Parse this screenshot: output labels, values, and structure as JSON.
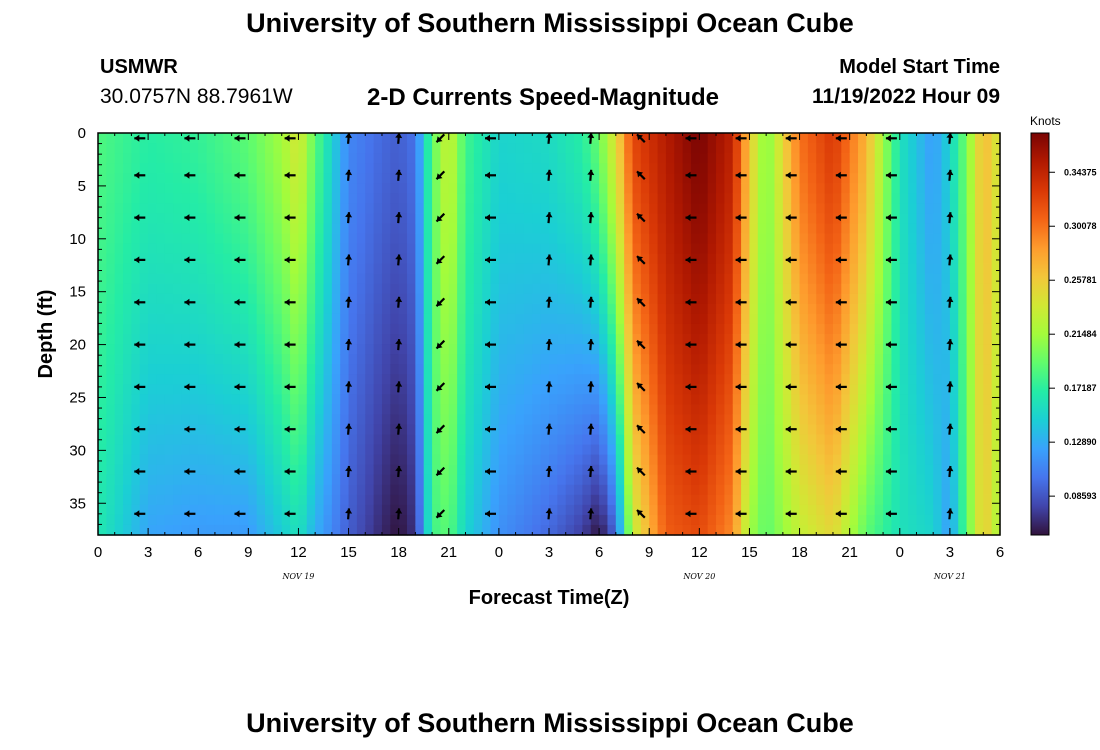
{
  "header": {
    "title_top": "University of Southern Mississippi Ocean Cube",
    "title_bottom": "University of Southern Mississippi Ocean Cube",
    "station": "USMWR",
    "coordinates": "30.0757N  88.7961W",
    "plot_title": "2-D Currents Speed-Magnitude",
    "model_start_label": "Model Start Time",
    "model_start_value": "11/19/2022 Hour 09"
  },
  "chart_data": {
    "type": "heatmap",
    "title": "2-D Currents Speed-Magnitude",
    "xlabel": "Forecast Time(Z)",
    "ylabel": "Depth (ft)",
    "colorbar_unit": "Knots",
    "x_range_hours": [
      0,
      54
    ],
    "y_range_ft": [
      0,
      38
    ],
    "x_tick_labels": [
      "0",
      "3",
      "6",
      "9",
      "12",
      "15",
      "18",
      "21",
      "0",
      "3",
      "6",
      "9",
      "12",
      "15",
      "18",
      "21",
      "0",
      "3",
      "6"
    ],
    "y_ticks": [
      0,
      5,
      10,
      15,
      20,
      25,
      30,
      35
    ],
    "date_labels": [
      {
        "text": "NOV 19",
        "hour": 12
      },
      {
        "text": "NOV 20",
        "hour": 36
      },
      {
        "text": "NOV 21",
        "hour": 51
      }
    ],
    "colorbar_ticks": [
      0.34375,
      0.30078,
      0.25781,
      0.21484,
      0.17187,
      0.1289,
      0.08593
    ],
    "colorbar_tick_labels": [
      "0.34375",
      "0.30078",
      "0.25781",
      "0.21484",
      "0.17187",
      "0.12890",
      "0.08593"
    ],
    "colorbar_range": [
      0.055,
      0.375
    ],
    "colormap": [
      "#30123b",
      "#4145ab",
      "#4675ed",
      "#39a2fc",
      "#1bcfd4",
      "#24eca6",
      "#61fc6c",
      "#a4fc3b",
      "#d1e834",
      "#f3c63a",
      "#fe9b2d",
      "#f36315",
      "#d93806",
      "#b11901",
      "#7a0403"
    ],
    "speed_profile": [
      {
        "hour": 0,
        "surface": 0.185,
        "bottom": 0.165
      },
      {
        "hour": 3,
        "surface": 0.17,
        "bottom": 0.125
      },
      {
        "hour": 6,
        "surface": 0.175,
        "bottom": 0.12
      },
      {
        "hour": 9,
        "surface": 0.19,
        "bottom": 0.12
      },
      {
        "hour": 11,
        "surface": 0.215,
        "bottom": 0.145
      },
      {
        "hour": 12,
        "surface": 0.24,
        "bottom": 0.16
      },
      {
        "hour": 13,
        "surface": 0.19,
        "bottom": 0.13
      },
      {
        "hour": 15,
        "surface": 0.11,
        "bottom": 0.09
      },
      {
        "hour": 17,
        "surface": 0.095,
        "bottom": 0.065
      },
      {
        "hour": 18,
        "surface": 0.09,
        "bottom": 0.055
      },
      {
        "hour": 19,
        "surface": 0.1,
        "bottom": 0.07
      },
      {
        "hour": 20,
        "surface": 0.19,
        "bottom": 0.18
      },
      {
        "hour": 21,
        "surface": 0.235,
        "bottom": 0.19
      },
      {
        "hour": 22,
        "surface": 0.18,
        "bottom": 0.15
      },
      {
        "hour": 24,
        "surface": 0.15,
        "bottom": 0.115
      },
      {
        "hour": 27,
        "surface": 0.155,
        "bottom": 0.095
      },
      {
        "hour": 29,
        "surface": 0.17,
        "bottom": 0.075
      },
      {
        "hour": 30,
        "surface": 0.195,
        "bottom": 0.055
      },
      {
        "hour": 31,
        "surface": 0.245,
        "bottom": 0.095
      },
      {
        "hour": 32,
        "surface": 0.32,
        "bottom": 0.23
      },
      {
        "hour": 34,
        "surface": 0.35,
        "bottom": 0.31
      },
      {
        "hour": 36,
        "surface": 0.375,
        "bottom": 0.32
      },
      {
        "hour": 38,
        "surface": 0.345,
        "bottom": 0.29
      },
      {
        "hour": 39,
        "surface": 0.26,
        "bottom": 0.215
      },
      {
        "hour": 40,
        "surface": 0.2,
        "bottom": 0.19
      },
      {
        "hour": 42,
        "surface": 0.3,
        "bottom": 0.23
      },
      {
        "hour": 44,
        "surface": 0.33,
        "bottom": 0.25
      },
      {
        "hour": 46,
        "surface": 0.27,
        "bottom": 0.19
      },
      {
        "hour": 48,
        "surface": 0.16,
        "bottom": 0.16
      },
      {
        "hour": 50,
        "surface": 0.12,
        "bottom": 0.15
      },
      {
        "hour": 51,
        "surface": 0.15,
        "bottom": 0.12
      },
      {
        "hour": 52,
        "surface": 0.2,
        "bottom": 0.19
      },
      {
        "hour": 53,
        "surface": 0.27,
        "bottom": 0.26
      },
      {
        "hour": 54,
        "surface": 0.235,
        "bottom": 0.215
      }
    ],
    "vector_times_hours": [
      2.5,
      5.5,
      8.5,
      11.5,
      15,
      18,
      20.5,
      23.5,
      27,
      29.5,
      32.5,
      35.5,
      38.5,
      41.5,
      44.5,
      47.5,
      51
    ],
    "vector_depths_ft": [
      0.5,
      4,
      8,
      12,
      16,
      20,
      24,
      28,
      32,
      36
    ],
    "vector_directions_deg": [
      180,
      180,
      180,
      180,
      275,
      275,
      135,
      180,
      275,
      275,
      225,
      180,
      180,
      180,
      180,
      180,
      275
    ]
  }
}
